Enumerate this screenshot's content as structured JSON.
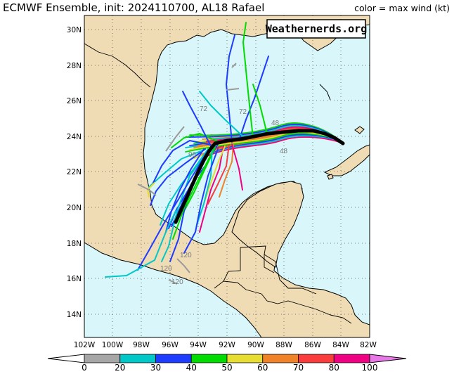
{
  "title": "ECMWF Ensemble, init: 2024110700, AL18 Rafael",
  "legend_title": "color = max wind (kt)",
  "watermark": "Weathernerds.org",
  "lat_labels": [
    "30N",
    "28N",
    "26N",
    "24N",
    "22N",
    "20N",
    "18N",
    "16N",
    "14N"
  ],
  "lon_labels": [
    "102W",
    "100W",
    "98W",
    "96W",
    "94W",
    "92W",
    "90W",
    "88W",
    "86W",
    "84W",
    "82W"
  ],
  "colorbar": {
    "ticks": [
      "0",
      "20",
      "30",
      "40",
      "50",
      "60",
      "70",
      "80",
      "100"
    ],
    "colors": [
      "#a6a6a6",
      "#00c8c8",
      "#1e3cff",
      "#00dc00",
      "#e6dc32",
      "#f08228",
      "#fa3c3c",
      "#f00082",
      "#e878e8"
    ]
  },
  "colors": {
    "ocean": "#d9f7fa",
    "land": "#f0dcb4",
    "border": "#000000",
    "grid": "#555555"
  },
  "hour_labels": [
    "72",
    "96",
    "120",
    "120",
    "120",
    "48",
    "48",
    "72"
  ]
}
